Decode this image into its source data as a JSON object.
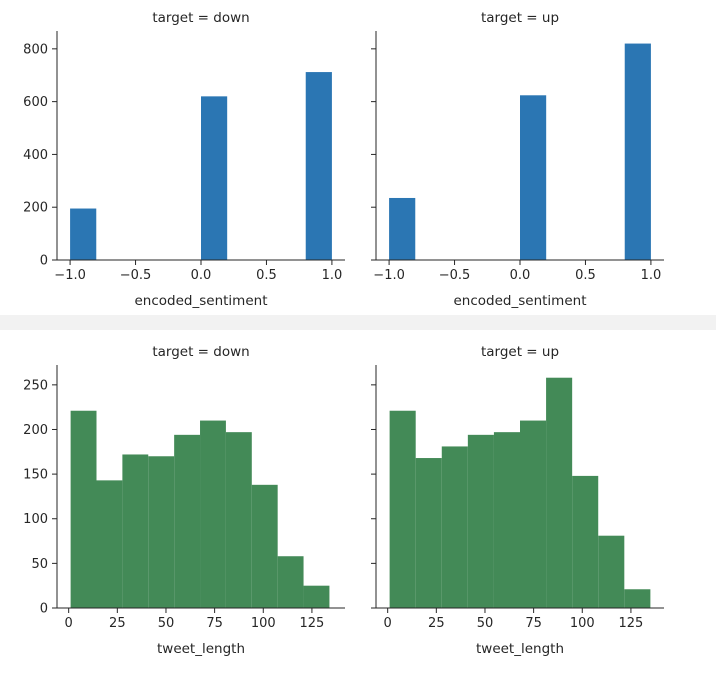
{
  "chart_data": [
    {
      "type": "histogram",
      "title": "target = down",
      "xlabel": "encoded_sentiment",
      "ylabel": "",
      "xlim": [
        -1.1,
        1.1
      ],
      "ylim": [
        0,
        860
      ],
      "xticks": [
        -1.0,
        -0.5,
        0.0,
        0.5,
        1.0
      ],
      "xtick_labels": [
        "−1.0",
        "−0.5",
        "0.0",
        "0.5",
        "1.0"
      ],
      "yticks": [
        0,
        200,
        400,
        600,
        800
      ],
      "ytick_labels": [
        "0",
        "200",
        "400",
        "600",
        "800"
      ],
      "show_ytick_labels": true,
      "bin_edges": [
        -1.0,
        -0.8,
        -0.6,
        -0.4,
        -0.2,
        0.0,
        0.2,
        0.4,
        0.6,
        0.8,
        1.0
      ],
      "counts": [
        195,
        0,
        0,
        0,
        0,
        620,
        0,
        0,
        0,
        712
      ],
      "color": "#2b76b3",
      "grid": false
    },
    {
      "type": "histogram",
      "title": "target = up",
      "xlabel": "encoded_sentiment",
      "ylabel": "",
      "xlim": [
        -1.1,
        1.1
      ],
      "ylim": [
        0,
        860
      ],
      "xticks": [
        -1.0,
        -0.5,
        0.0,
        0.5,
        1.0
      ],
      "xtick_labels": [
        "−1.0",
        "−0.5",
        "0.0",
        "0.5",
        "1.0"
      ],
      "yticks": [
        0,
        200,
        400,
        600,
        800
      ],
      "ytick_labels": [],
      "show_ytick_labels": false,
      "bin_edges": [
        -1.0,
        -0.8,
        -0.6,
        -0.4,
        -0.2,
        0.0,
        0.2,
        0.4,
        0.6,
        0.8,
        1.0
      ],
      "counts": [
        235,
        0,
        0,
        0,
        0,
        624,
        0,
        0,
        0,
        820
      ],
      "color": "#2b76b3",
      "grid": false
    },
    {
      "type": "histogram",
      "title": "target = down",
      "xlabel": "tweet_length",
      "ylabel": "",
      "xlim": [
        -6,
        142
      ],
      "ylim": [
        0,
        270
      ],
      "xticks": [
        0,
        25,
        50,
        75,
        100,
        125
      ],
      "xtick_labels": [
        "0",
        "25",
        "50",
        "75",
        "100",
        "125"
      ],
      "yticks": [
        0,
        50,
        100,
        150,
        200,
        250
      ],
      "ytick_labels": [
        "0",
        "50",
        "100",
        "150",
        "200",
        "250"
      ],
      "show_ytick_labels": true,
      "bin_edges": [
        1,
        14.3,
        27.6,
        40.9,
        54.2,
        67.5,
        80.8,
        94.1,
        107.4,
        120.7,
        134
      ],
      "counts": [
        221,
        143,
        172,
        170,
        194,
        210,
        197,
        138,
        58,
        25
      ],
      "color": "#438a57",
      "grid": false
    },
    {
      "type": "histogram",
      "title": "target = up",
      "xlabel": "tweet_length",
      "ylabel": "",
      "xlim": [
        -6,
        142
      ],
      "ylim": [
        0,
        270
      ],
      "xticks": [
        0,
        25,
        50,
        75,
        100,
        125
      ],
      "xtick_labels": [
        "0",
        "25",
        "50",
        "75",
        "100",
        "125"
      ],
      "yticks": [
        0,
        50,
        100,
        150,
        200,
        250
      ],
      "ytick_labels": [],
      "show_ytick_labels": false,
      "bin_edges": [
        1,
        14.4,
        27.8,
        41.2,
        54.6,
        68.0,
        81.4,
        94.8,
        108.2,
        121.6,
        135
      ],
      "counts": [
        221,
        168,
        181,
        194,
        197,
        210,
        258,
        148,
        81,
        21
      ],
      "color": "#438a57",
      "grid": false
    }
  ]
}
